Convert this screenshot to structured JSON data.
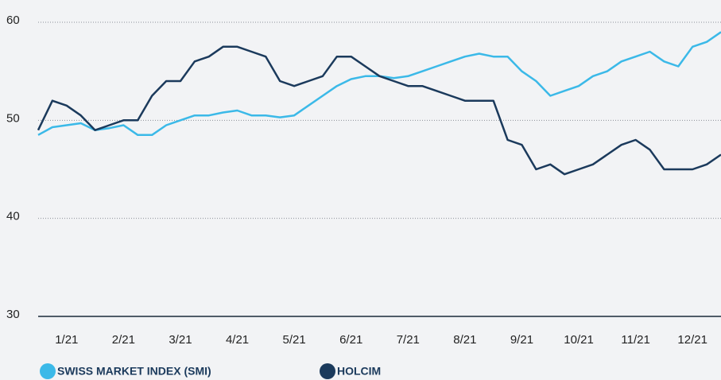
{
  "chart_data": {
    "type": "line",
    "categories": [
      null,
      null,
      "1/21",
      null,
      null,
      null,
      "2/21",
      null,
      null,
      null,
      "3/21",
      null,
      null,
      null,
      "4/21",
      null,
      null,
      null,
      "5/21",
      null,
      null,
      null,
      "6/21",
      null,
      null,
      null,
      "7/21",
      null,
      null,
      null,
      "8/21",
      null,
      null,
      null,
      "9/21",
      null,
      null,
      null,
      "10/21",
      null,
      null,
      null,
      "11/21",
      null,
      null,
      null,
      "12/21",
      null,
      null
    ],
    "series": [
      {
        "name": "SWISS MARKET INDEX (SMI)",
        "color": "#3bb9e8",
        "values": [
          48.5,
          49.3,
          49.5,
          49.7,
          49,
          49.2,
          49.5,
          48.5,
          48.5,
          49.5,
          50,
          50.5,
          50.5,
          50.8,
          51,
          50.5,
          50.5,
          50.3,
          50.5,
          51.5,
          52.5,
          53.5,
          54.2,
          54.5,
          54.5,
          54.3,
          54.5,
          55,
          55.5,
          56,
          56.5,
          56.8,
          56.5,
          56.5,
          55,
          54,
          52.5,
          53,
          53.5,
          54.5,
          55,
          56,
          56.5,
          57,
          56,
          55.5,
          57.5,
          58,
          59
        ]
      },
      {
        "name": "HOLCIM",
        "color": "#1b3a5c",
        "values": [
          49,
          52,
          51.5,
          50.5,
          49,
          49.5,
          50,
          50,
          52.5,
          54,
          54,
          56,
          56.5,
          57.5,
          57.5,
          57,
          56.5,
          54,
          53.5,
          54,
          54.5,
          56.5,
          56.5,
          55.5,
          54.5,
          54,
          53.5,
          53.5,
          53,
          52.5,
          52,
          52,
          52,
          48,
          47.5,
          45,
          45.5,
          44.5,
          45,
          45.5,
          46.5,
          47.5,
          48,
          47,
          45,
          45,
          45,
          45.5,
          46.5
        ]
      }
    ],
    "ylim": [
      30,
      60
    ],
    "yticks": [
      30,
      40,
      50,
      60
    ],
    "grid": true
  }
}
